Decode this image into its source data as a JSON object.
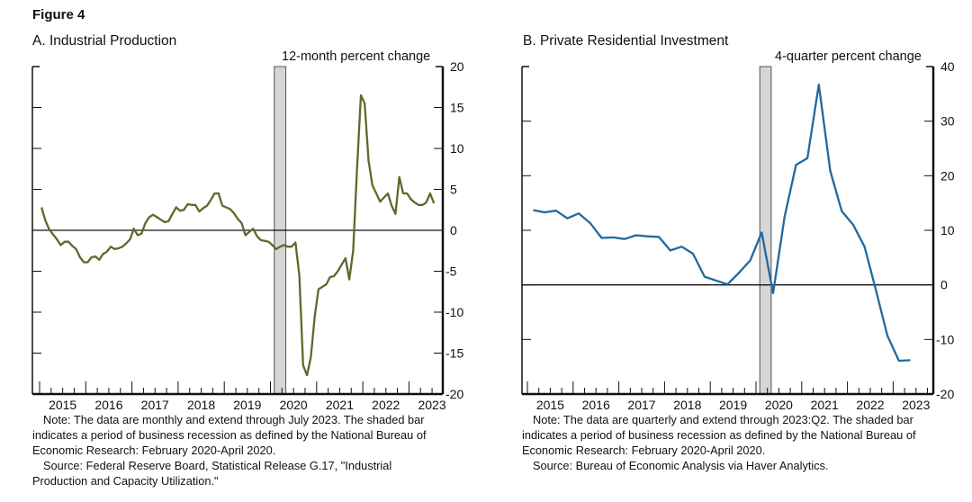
{
  "figure_title": "Figure 4",
  "chart_data": [
    {
      "type": "line",
      "panel": "A",
      "title": "A. Industrial Production",
      "ylabel": "12-month percent change",
      "xlabel": "",
      "frequency": "monthly",
      "start": "2015-01",
      "ylim": [
        -20,
        20
      ],
      "yticks": [
        20,
        15,
        10,
        5,
        0,
        -5,
        -10,
        -15,
        -20
      ],
      "ytick_labels": [
        "20",
        "15",
        "10",
        "5",
        "0",
        "-5",
        "-10",
        "-15",
        "-20"
      ],
      "xtick_labels": [
        "2015",
        "2016",
        "2017",
        "2018",
        "2019",
        "2020",
        "2021",
        "2022",
        "2023"
      ],
      "x_range_years": [
        2015,
        2023.667
      ],
      "line_color": "#5a6b2b",
      "recession": {
        "start": 2020.083,
        "end": 2020.333,
        "label": "February 2020-April 2020"
      },
      "series": [
        {
          "name": "Industrial Production",
          "values": [
            2.8,
            1.2,
            0.1,
            -0.5,
            -1.1,
            -1.8,
            -1.4,
            -1.4,
            -1.9,
            -2.3,
            -3.3,
            -3.9,
            -3.9,
            -3.3,
            -3.2,
            -3.6,
            -2.9,
            -2.6,
            -2.0,
            -2.3,
            -2.2,
            -2.0,
            -1.6,
            -1.1,
            0.2,
            -0.6,
            -0.4,
            0.9,
            1.6,
            1.9,
            1.6,
            1.3,
            1.0,
            1.1,
            2.0,
            2.8,
            2.4,
            2.5,
            3.2,
            3.1,
            3.1,
            2.3,
            2.7,
            3.0,
            3.7,
            4.5,
            4.5,
            3.0,
            2.8,
            2.6,
            2.1,
            1.4,
            0.9,
            -0.6,
            -0.2,
            0.2,
            -0.7,
            -1.2,
            -1.3,
            -1.4,
            -1.8,
            -2.3,
            -2.0,
            -1.8,
            -2.0,
            -2.0,
            -1.5,
            -5.5,
            -16.5,
            -17.7,
            -15.5,
            -10.5,
            -7.2,
            -6.9,
            -6.6,
            -5.7,
            -5.6,
            -5.0,
            -4.2,
            -3.4,
            -6.0,
            -2.5,
            7.5,
            16.5,
            15.5,
            8.5,
            5.5,
            4.5,
            3.5,
            4.0,
            4.5,
            3.0,
            2.0,
            6.5,
            4.5,
            4.5,
            3.8,
            3.4,
            3.1,
            3.1,
            3.4,
            4.5,
            3.3
          ]
        }
      ]
    },
    {
      "type": "line",
      "panel": "B",
      "title": "B. Private Residential Investment",
      "ylabel": "4-quarter percent change",
      "xlabel": "",
      "frequency": "quarterly",
      "start": "2015-Q1",
      "ylim": [
        -20,
        40
      ],
      "yticks": [
        40,
        30,
        20,
        10,
        0,
        -10,
        -20
      ],
      "ytick_labels": [
        "40",
        "30",
        "20",
        "10",
        "0",
        "-10",
        "-20"
      ],
      "xtick_labels": [
        "2015",
        "2016",
        "2017",
        "2018",
        "2019",
        "2020",
        "2021",
        "2022",
        "2023"
      ],
      "x_range_years": [
        2015,
        2023.75
      ],
      "line_color": "#1f6aa0",
      "recession": {
        "start": 2020.083,
        "end": 2020.333,
        "label": "February 2020-April 2020"
      },
      "series": [
        {
          "name": "Private Residential Investment",
          "values": [
            13.7,
            13.3,
            13.6,
            12.2,
            13.1,
            11.3,
            8.6,
            8.7,
            8.4,
            9.1,
            8.9,
            8.8,
            6.3,
            7.0,
            5.7,
            1.5,
            0.8,
            0.1,
            2.2,
            4.5,
            9.6,
            -1.5,
            12.5,
            22.0,
            23.2,
            36.7,
            20.9,
            13.5,
            11.0,
            7.0,
            -1.0,
            -9.3,
            -13.9,
            -13.8
          ]
        }
      ]
    }
  ],
  "notes": {
    "a_note": "Note: The data are monthly and extend through July 2023. The shaded bar indicates a period of business recession as defined by the National Bureau of Economic Research: February 2020-April 2020.",
    "a_source": "Source: Federal Reserve Board, Statistical Release G.17, \"Industrial Production and Capacity Utilization.\"",
    "b_note": "Note: The data are quarterly and extend through 2023:Q2. The shaded bar indicates a period of business recession as defined by the National Bureau of Economic Research: February 2020-April 2020.",
    "b_source": "Source: Bureau of Economic Analysis via Haver Analytics."
  }
}
